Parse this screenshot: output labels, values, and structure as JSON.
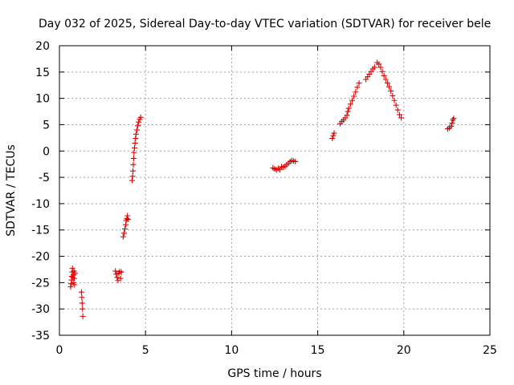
{
  "chart_data": {
    "type": "scatter",
    "title": "Day 032 of 2025, Sidereal Day-to-day VTEC variation (SDTVAR) for receiver bele",
    "xlabel": "GPS time / hours",
    "ylabel": "SDTVAR / TECUs",
    "xlim": [
      0,
      25
    ],
    "ylim": [
      -35,
      20
    ],
    "xticks": [
      0,
      5,
      10,
      15,
      20,
      25
    ],
    "yticks": [
      -35,
      -30,
      -25,
      -20,
      -15,
      -10,
      -5,
      0,
      5,
      10,
      15,
      20
    ],
    "grid": true,
    "marker": "plus",
    "series": [
      {
        "name": "SDTVAR",
        "color": "#e00000",
        "points": [
          [
            0.65,
            -25.8
          ],
          [
            0.68,
            -25.2
          ],
          [
            0.7,
            -24.5
          ],
          [
            0.72,
            -23.8
          ],
          [
            0.74,
            -23.0
          ],
          [
            0.76,
            -22.3
          ],
          [
            0.78,
            -24.0
          ],
          [
            0.8,
            -25.0
          ],
          [
            0.82,
            -23.5
          ],
          [
            0.84,
            -22.8
          ],
          [
            0.86,
            -24.2
          ],
          [
            0.88,
            -25.4
          ],
          [
            0.9,
            -23.2
          ],
          [
            1.28,
            -26.8
          ],
          [
            1.3,
            -27.8
          ],
          [
            1.32,
            -28.9
          ],
          [
            1.34,
            -30.0
          ],
          [
            1.36,
            -31.4
          ],
          [
            3.25,
            -22.8
          ],
          [
            3.3,
            -23.4
          ],
          [
            3.35,
            -24.0
          ],
          [
            3.4,
            -24.6
          ],
          [
            3.45,
            -23.2
          ],
          [
            3.5,
            -22.9
          ],
          [
            3.55,
            -24.2
          ],
          [
            3.6,
            -23.0
          ],
          [
            3.7,
            -16.3
          ],
          [
            3.75,
            -15.6
          ],
          [
            3.8,
            -14.8
          ],
          [
            3.85,
            -14.0
          ],
          [
            3.88,
            -13.2
          ],
          [
            3.92,
            -12.8
          ],
          [
            3.95,
            -12.3
          ],
          [
            3.98,
            -13.0
          ],
          [
            4.22,
            -5.6
          ],
          [
            4.25,
            -4.8
          ],
          [
            4.27,
            -3.8
          ],
          [
            4.29,
            -2.6
          ],
          [
            4.31,
            -1.4
          ],
          [
            4.33,
            -0.3
          ],
          [
            4.36,
            0.6
          ],
          [
            4.39,
            1.5
          ],
          [
            4.42,
            2.4
          ],
          [
            4.45,
            3.2
          ],
          [
            4.5,
            4.0
          ],
          [
            4.55,
            4.8
          ],
          [
            4.6,
            5.5
          ],
          [
            4.66,
            6.0
          ],
          [
            4.72,
            6.4
          ],
          [
            12.4,
            -3.2
          ],
          [
            12.5,
            -3.4
          ],
          [
            12.6,
            -3.6
          ],
          [
            12.7,
            -3.3
          ],
          [
            12.8,
            -3.5
          ],
          [
            12.9,
            -3.0
          ],
          [
            13.0,
            -3.1
          ],
          [
            13.1,
            -2.9
          ],
          [
            13.2,
            -2.6
          ],
          [
            13.3,
            -2.3
          ],
          [
            13.4,
            -2.0
          ],
          [
            13.5,
            -1.8
          ],
          [
            13.6,
            -1.9
          ],
          [
            13.7,
            -2.0
          ],
          [
            15.85,
            2.4
          ],
          [
            15.9,
            2.9
          ],
          [
            15.95,
            3.4
          ],
          [
            16.3,
            5.2
          ],
          [
            16.4,
            5.6
          ],
          [
            16.5,
            5.9
          ],
          [
            16.6,
            6.3
          ],
          [
            16.7,
            6.8
          ],
          [
            16.75,
            7.5
          ],
          [
            16.8,
            8.1
          ],
          [
            16.9,
            8.9
          ],
          [
            17.0,
            9.6
          ],
          [
            17.1,
            10.4
          ],
          [
            17.2,
            11.2
          ],
          [
            17.3,
            12.1
          ],
          [
            17.4,
            12.9
          ],
          [
            17.8,
            13.6
          ],
          [
            17.9,
            14.1
          ],
          [
            18.0,
            14.6
          ],
          [
            18.1,
            15.1
          ],
          [
            18.2,
            15.6
          ],
          [
            18.3,
            15.9
          ],
          [
            18.45,
            16.8
          ],
          [
            18.55,
            16.5
          ],
          [
            18.65,
            15.9
          ],
          [
            18.75,
            15.1
          ],
          [
            18.85,
            14.3
          ],
          [
            18.95,
            13.6
          ],
          [
            19.05,
            12.9
          ],
          [
            19.15,
            12.2
          ],
          [
            19.25,
            11.4
          ],
          [
            19.35,
            10.5
          ],
          [
            19.45,
            9.6
          ],
          [
            19.55,
            8.7
          ],
          [
            19.65,
            7.8
          ],
          [
            19.75,
            6.9
          ],
          [
            19.85,
            6.3
          ],
          [
            22.55,
            4.2
          ],
          [
            22.65,
            4.4
          ],
          [
            22.75,
            4.7
          ],
          [
            22.8,
            5.3
          ],
          [
            22.85,
            5.9
          ],
          [
            22.9,
            6.2
          ]
        ]
      }
    ]
  }
}
